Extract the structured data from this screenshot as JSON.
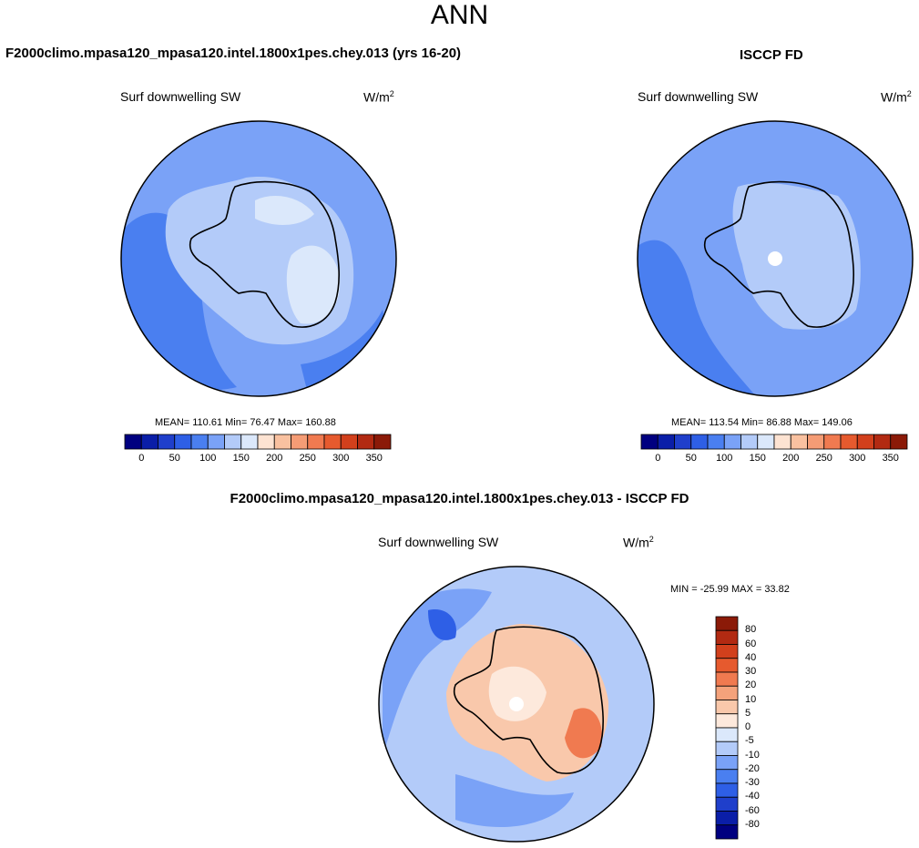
{
  "page": {
    "title": "ANN",
    "bottom_title": "F2000climo.mpasa120_mpasa120.intel.1800x1pes.chey.013 - ISCCP FD"
  },
  "colors": {
    "abs_scale": [
      "#000080",
      "#0a1ea8",
      "#1f3fcb",
      "#2e5fe6",
      "#4a7ff0",
      "#7aa2f7",
      "#b3cbf9",
      "#dbe8fb",
      "#fde3d2",
      "#f9c1a0",
      "#f59c75",
      "#f07a50",
      "#e65a2e",
      "#d2401c",
      "#b22a12",
      "#8b1a08"
    ],
    "diff_scale": [
      "#000080",
      "#0a1ea8",
      "#1f3fcb",
      "#2e5fe6",
      "#4a7ff0",
      "#7aa2f7",
      "#b3cbf9",
      "#dbe8fb",
      "#fde9dc",
      "#f9c8ab",
      "#f4a27b",
      "#f07a50",
      "#e65a2e",
      "#d2401c",
      "#b22a12",
      "#8b1a08"
    ],
    "land_contour": "#000000"
  },
  "panels": {
    "model": {
      "title": "F2000climo.mpasa120_mpasa120.intel.1800x1pes.chey.013 (yrs 16-20)",
      "variable": "Surf downwelling SW",
      "units": "W/m",
      "units_exp": "2",
      "stats": "MEAN= 110.61  Min=  76.47  Max= 160.88"
    },
    "obs": {
      "title": "ISCCP FD",
      "variable": "Surf downwelling SW",
      "units": "W/m",
      "units_exp": "2",
      "stats": "MEAN= 113.54  Min=  86.88  Max= 149.06"
    },
    "diff": {
      "variable": "Surf downwelling SW",
      "units": "W/m",
      "units_exp": "2",
      "stats": "MIN = -25.99 MAX =  33.82"
    }
  },
  "chart_data": [
    {
      "type": "heatmap",
      "name": "model",
      "projection": "south-polar-stereographic",
      "title": "F2000climo.mpasa120_mpasa120.intel.1800x1pes.chey.013 (yrs 16-20)",
      "variable": "Surf downwelling SW",
      "units": "W/m2",
      "mean": 110.61,
      "min": 76.47,
      "max": 160.88,
      "colorbar_ticks": [
        "0",
        "50",
        "100",
        "150",
        "200",
        "250",
        "300",
        "350"
      ],
      "colorbar_levels": 16
    },
    {
      "type": "heatmap",
      "name": "obs",
      "projection": "south-polar-stereographic",
      "title": "ISCCP FD",
      "variable": "Surf downwelling SW",
      "units": "W/m2",
      "mean": 113.54,
      "min": 86.88,
      "max": 149.06,
      "colorbar_ticks": [
        "0",
        "50",
        "100",
        "150",
        "200",
        "250",
        "300",
        "350"
      ],
      "colorbar_levels": 16
    },
    {
      "type": "heatmap",
      "name": "difference",
      "projection": "south-polar-stereographic",
      "title": "F2000climo.mpasa120_mpasa120.intel.1800x1pes.chey.013 - ISCCP FD",
      "variable": "Surf downwelling SW",
      "units": "W/m2",
      "min": -25.99,
      "max": 33.82,
      "colorbar_ticks": [
        "80",
        "60",
        "40",
        "30",
        "20",
        "10",
        "5",
        "0",
        "-5",
        "-10",
        "-20",
        "-30",
        "-40",
        "-60",
        "-80"
      ],
      "colorbar_levels": 16
    }
  ]
}
